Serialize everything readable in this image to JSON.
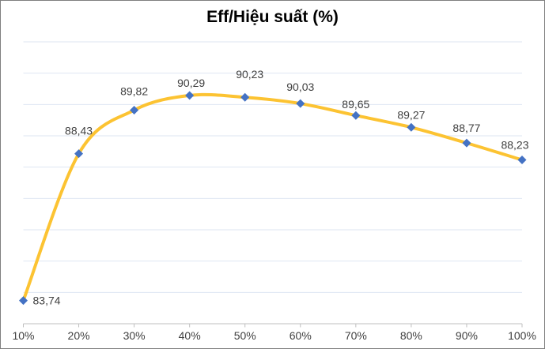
{
  "chart_data": {
    "type": "line",
    "title": "Eff/Hiệu suất (%)",
    "categories": [
      "10%",
      "20%",
      "30%",
      "40%",
      "50%",
      "60%",
      "70%",
      "80%",
      "90%",
      "100%"
    ],
    "series": [
      {
        "name": "Eff/Hiệu suất (%)",
        "values": [
          83.74,
          88.43,
          89.82,
          90.29,
          90.23,
          90.03,
          89.65,
          89.27,
          88.77,
          88.23
        ]
      }
    ],
    "value_labels": [
      "83,74",
      "88,43",
      "89,82",
      "90,29",
      "90,23",
      "90,03",
      "89,65",
      "89,27",
      "88,77",
      "88,23"
    ],
    "xlabel": "",
    "ylabel": "",
    "ylim": [
      83,
      92
    ],
    "gridline_step": 1,
    "grid": "horizontal only, no y-axis tick labels",
    "legend_position": "none",
    "line_style": "smooth",
    "marker_shape": "diamond",
    "colors": {
      "line": "#FCC332",
      "marker": "#4472C4",
      "gridline": "#DEE6F2",
      "axis": "#BFBFBF",
      "data_label_text": "#404040",
      "axis_label_text": "#404040",
      "title_text": "#000000",
      "border": "#7F7F7F",
      "background": "#FFFFFF"
    }
  }
}
